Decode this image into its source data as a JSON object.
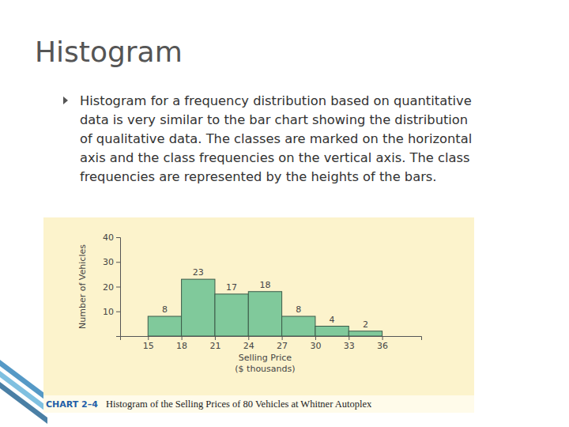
{
  "slide": {
    "title": "Histogram",
    "body": [
      "Histogram for a frequency distribution based on quantitative",
      "data is very similar to the bar chart showing the distribution",
      "of qualitative data. The classes are marked on the horizontal",
      "axis and the class frequencies on the vertical axis. The class",
      "frequencies are represented by the heights of the bars."
    ]
  },
  "chart_data": {
    "type": "histogram",
    "title": "Histogram of the Selling Prices of 80 Vehicles at Whitner Autoplex",
    "annotations": [
      "CHART 2–4"
    ],
    "xlabel": [
      "Selling Price",
      "($ thousands)"
    ],
    "ylabel": "Number of Vehicles",
    "bins": [
      15,
      18,
      21,
      24,
      27,
      30,
      33,
      36
    ],
    "values": [
      8,
      23,
      17,
      18,
      8,
      4,
      2
    ],
    "color": "#80c99b",
    "xlim": [
      12.5,
      39.5
    ],
    "xticks": [
      15,
      18,
      21,
      24,
      27,
      30,
      33,
      36
    ],
    "ylim": [
      0,
      40
    ],
    "yticks": [
      10,
      20,
      30,
      40
    ],
    "grid": false,
    "data_labels": true
  }
}
